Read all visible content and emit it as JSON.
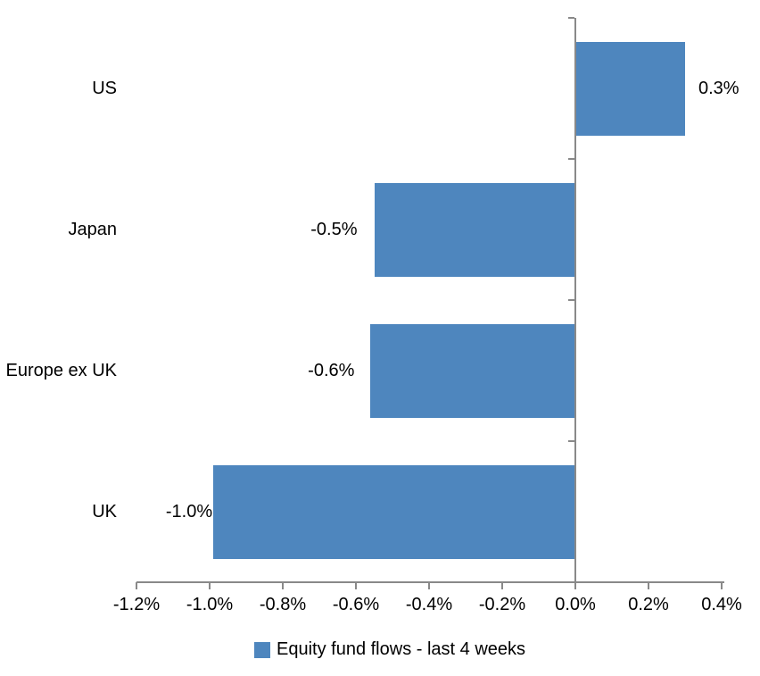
{
  "chart_data": {
    "type": "bar",
    "orientation": "horizontal",
    "title": "",
    "categories": [
      "US",
      "Japan",
      "Europe ex UK",
      "UK"
    ],
    "values": [
      0.3,
      -0.55,
      -0.56,
      -0.99
    ],
    "data_labels": [
      "0.3%",
      "-0.5%",
      "-0.6%",
      "-1.0%"
    ],
    "series_name": "Equity fund flows - last 4 weeks",
    "xlabel": "",
    "ylabel": "",
    "xlim": [
      -1.2,
      0.4
    ],
    "xtick_values": [
      -1.2,
      -1.0,
      -0.8,
      -0.6,
      -0.4,
      -0.2,
      0.0,
      0.2,
      0.4
    ],
    "xtick_labels": [
      "-1.2%",
      "-1.0%",
      "-0.8%",
      "-0.6%",
      "-0.4%",
      "-0.2%",
      "0.0%",
      "0.2%",
      "0.4%"
    ],
    "grid": "off",
    "legend_position": "bottom",
    "colors": {
      "bar": "#4E86BE",
      "axis": "#898989",
      "text": "#000000",
      "background": "#FFFFFF"
    }
  },
  "legend": {
    "swatch_icon": "series-color-square",
    "label": "Equity fund flows - last 4 weeks"
  }
}
